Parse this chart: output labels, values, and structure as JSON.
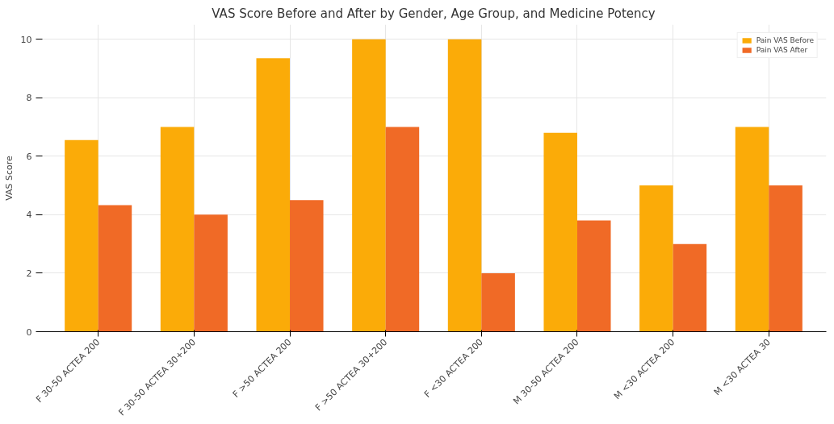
{
  "chart_data": {
    "type": "bar",
    "title": "VAS Score Before and After by Gender, Age Group, and Medicine Potency",
    "ylabel": "VAS Score",
    "categories": [
      "F 30-50 ACTEA 200",
      "F 30-50 ACTEA 30+200",
      "F >50 ACTEA 200",
      "F >50 ACTEA 30+200",
      "F <30 ACTEA 200",
      "M 30-50 ACTEA 200",
      "M <30 ACTEA 200",
      "M <30 ACTEA 30"
    ],
    "series": [
      {
        "name": "Pain VAS Before",
        "color": "#fbab08",
        "values": [
          6.55,
          7,
          9.35,
          10,
          10,
          6.8,
          5,
          7
        ]
      },
      {
        "name": "Pain VAS After",
        "color": "#f06a26",
        "values": [
          4.33,
          4,
          4.5,
          7,
          2,
          3.8,
          3,
          5
        ]
      }
    ],
    "ylim": [
      0,
      10.5
    ],
    "yticks": [
      0,
      2,
      4,
      6,
      8,
      10
    ],
    "grid": true,
    "legend": "top right"
  }
}
